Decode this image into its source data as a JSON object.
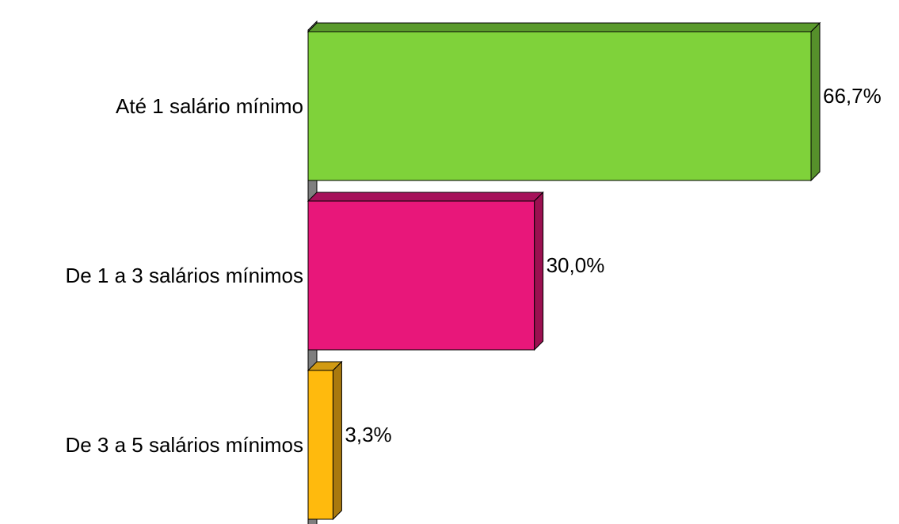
{
  "chart_data": {
    "type": "bar",
    "orientation": "horizontal",
    "style": "3d",
    "categories": [
      "Até 1 salário mínimo",
      "De 1 a 3 salários mínimos",
      "De 3 a 5 salários mínimos"
    ],
    "values": [
      66.7,
      30.0,
      3.3
    ],
    "data_labels": [
      "66,7%",
      "30,0%",
      "3,3%"
    ],
    "unit": "%",
    "xlim": [
      0,
      66.7
    ],
    "grid": false,
    "legend": "none",
    "colors": [
      {
        "front": "#7fd23a",
        "side": "#56902b",
        "top": "#5a9a2c"
      },
      {
        "front": "#e8177a",
        "side": "#9b1050",
        "top": "#a6115a"
      },
      {
        "front": "#ffba0d",
        "side": "#a9790e",
        "top": "#d19a12"
      }
    ],
    "axis_color": "#7f7f7f"
  }
}
